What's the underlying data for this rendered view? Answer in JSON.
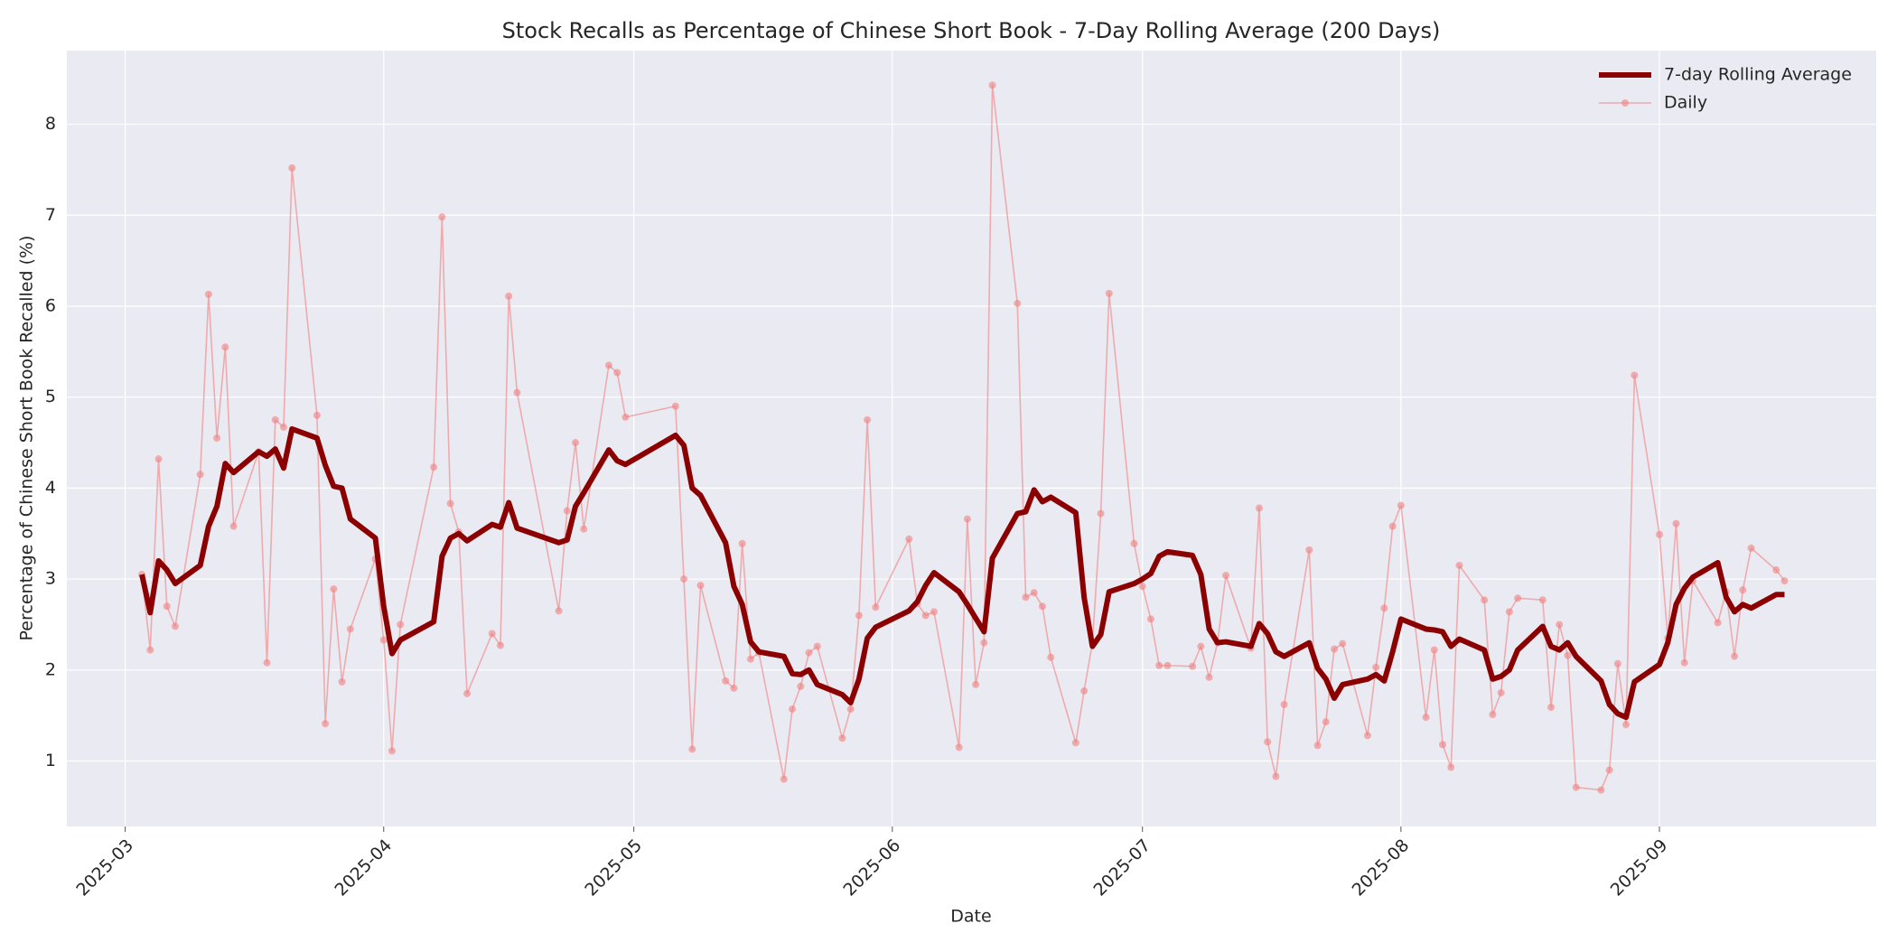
{
  "chart_data": {
    "type": "line",
    "title": "Stock Recalls as Percentage of Chinese Short Book - 7-Day Rolling Average (200 Days)",
    "x_label": "Date",
    "y_label": "Percentage of Chinese Short Book Recalled (%)",
    "x": [
      "2025-03-03",
      "2025-03-04",
      "2025-03-05",
      "2025-03-06",
      "2025-03-07",
      "2025-03-10",
      "2025-03-11",
      "2025-03-12",
      "2025-03-13",
      "2025-03-14",
      "2025-03-17",
      "2025-03-18",
      "2025-03-19",
      "2025-03-20",
      "2025-03-21",
      "2025-03-24",
      "2025-03-25",
      "2025-03-26",
      "2025-03-27",
      "2025-03-28",
      "2025-03-31",
      "2025-04-01",
      "2025-04-02",
      "2025-04-03",
      "2025-04-07",
      "2025-04-08",
      "2025-04-09",
      "2025-04-10",
      "2025-04-11",
      "2025-04-14",
      "2025-04-15",
      "2025-04-16",
      "2025-04-17",
      "2025-04-22",
      "2025-04-23",
      "2025-04-24",
      "2025-04-25",
      "2025-04-28",
      "2025-04-29",
      "2025-04-30",
      "2025-05-06",
      "2025-05-07",
      "2025-05-08",
      "2025-05-09",
      "2025-05-12",
      "2025-05-13",
      "2025-05-14",
      "2025-05-15",
      "2025-05-16",
      "2025-05-19",
      "2025-05-20",
      "2025-05-21",
      "2025-05-22",
      "2025-05-23",
      "2025-05-26",
      "2025-05-27",
      "2025-05-28",
      "2025-05-29",
      "2025-05-30",
      "2025-06-03",
      "2025-06-04",
      "2025-06-05",
      "2025-06-06",
      "2025-06-09",
      "2025-06-10",
      "2025-06-11",
      "2025-06-12",
      "2025-06-13",
      "2025-06-16",
      "2025-06-17",
      "2025-06-18",
      "2025-06-19",
      "2025-06-20",
      "2025-06-23",
      "2025-06-24",
      "2025-06-25",
      "2025-06-26",
      "2025-06-27",
      "2025-06-30",
      "2025-07-01",
      "2025-07-02",
      "2025-07-03",
      "2025-07-04",
      "2025-07-07",
      "2025-07-08",
      "2025-07-09",
      "2025-07-10",
      "2025-07-11",
      "2025-07-14",
      "2025-07-15",
      "2025-07-16",
      "2025-07-17",
      "2025-07-18",
      "2025-07-21",
      "2025-07-22",
      "2025-07-23",
      "2025-07-24",
      "2025-07-25",
      "2025-07-28",
      "2025-07-29",
      "2025-07-30",
      "2025-07-31",
      "2025-08-01",
      "2025-08-04",
      "2025-08-05",
      "2025-08-06",
      "2025-08-07",
      "2025-08-08",
      "2025-08-11",
      "2025-08-12",
      "2025-08-13",
      "2025-08-14",
      "2025-08-15",
      "2025-08-18",
      "2025-08-19",
      "2025-08-20",
      "2025-08-21",
      "2025-08-22",
      "2025-08-25",
      "2025-08-26",
      "2025-08-27",
      "2025-08-28",
      "2025-08-29",
      "2025-09-01",
      "2025-09-02",
      "2025-09-03",
      "2025-09-04",
      "2025-09-05",
      "2025-09-08",
      "2025-09-09",
      "2025-09-10",
      "2025-09-11",
      "2025-09-12",
      "2025-09-15",
      "2025-09-16"
    ],
    "series": [
      {
        "name": "7-day Rolling Average",
        "color": "#8b0000",
        "marker": false,
        "values": [
          3.05,
          2.63,
          3.2,
          3.1,
          2.95,
          3.15,
          3.58,
          3.8,
          4.27,
          4.17,
          4.4,
          4.35,
          4.43,
          4.22,
          4.65,
          4.55,
          4.25,
          4.02,
          4.0,
          3.66,
          3.45,
          2.7,
          2.18,
          2.33,
          2.53,
          3.25,
          3.45,
          3.5,
          3.42,
          3.6,
          3.57,
          3.84,
          3.56,
          3.4,
          3.43,
          3.8,
          3.95,
          4.42,
          4.3,
          4.26,
          4.58,
          4.47,
          4.0,
          3.92,
          3.4,
          2.92,
          2.72,
          2.31,
          2.2,
          2.15,
          1.96,
          1.95,
          2.0,
          1.84,
          1.73,
          1.64,
          1.9,
          2.35,
          2.47,
          2.65,
          2.75,
          2.93,
          3.07,
          2.86,
          2.72,
          2.57,
          2.42,
          3.23,
          3.72,
          3.74,
          3.98,
          3.85,
          3.9,
          3.73,
          2.8,
          2.26,
          2.39,
          2.86,
          2.95,
          3.0,
          3.06,
          3.25,
          3.3,
          3.26,
          3.05,
          2.45,
          2.3,
          2.31,
          2.26,
          2.51,
          2.4,
          2.2,
          2.15,
          2.3,
          2.02,
          1.9,
          1.69,
          1.84,
          1.9,
          1.95,
          1.88,
          2.2,
          2.56,
          2.45,
          2.44,
          2.42,
          2.26,
          2.34,
          2.22,
          1.9,
          1.93,
          2.0,
          2.22,
          2.48,
          2.26,
          2.22,
          2.3,
          2.15,
          1.88,
          1.62,
          1.52,
          1.48,
          1.87,
          2.06,
          2.3,
          2.72,
          2.9,
          3.02,
          3.18,
          2.8,
          2.64,
          2.72,
          2.68,
          2.83,
          2.83
        ]
      },
      {
        "name": "Daily",
        "color": "#f08080",
        "marker": true,
        "values": [
          3.05,
          2.22,
          4.32,
          2.7,
          2.48,
          4.15,
          6.13,
          4.55,
          5.55,
          3.58,
          4.4,
          2.08,
          4.75,
          4.67,
          7.52,
          4.8,
          1.41,
          2.89,
          1.87,
          2.45,
          3.22,
          2.33,
          1.11,
          2.5,
          4.23,
          6.98,
          3.83,
          3.52,
          1.74,
          2.4,
          2.27,
          6.11,
          5.05,
          2.65,
          3.75,
          4.5,
          3.55,
          5.35,
          5.27,
          4.78,
          4.9,
          3.0,
          1.13,
          2.93,
          1.88,
          1.8,
          3.39,
          2.12,
          2.19,
          0.8,
          1.57,
          1.82,
          2.19,
          2.26,
          1.25,
          1.57,
          2.6,
          4.75,
          2.69,
          3.44,
          2.73,
          2.6,
          2.64,
          1.15,
          3.66,
          1.84,
          2.3,
          8.43,
          6.03,
          2.8,
          2.85,
          2.7,
          2.14,
          1.2,
          1.77,
          2.3,
          3.72,
          6.14,
          3.39,
          2.92,
          2.56,
          2.05,
          2.05,
          2.04,
          2.26,
          1.92,
          2.3,
          3.04,
          2.24,
          3.78,
          1.21,
          0.83,
          1.62,
          3.32,
          1.17,
          1.43,
          2.23,
          2.29,
          1.28,
          2.03,
          2.68,
          3.58,
          3.81,
          1.48,
          2.22,
          1.18,
          0.93,
          3.15,
          2.77,
          1.51,
          1.75,
          2.64,
          2.79,
          2.77,
          1.59,
          2.5,
          2.16,
          0.71,
          0.68,
          0.9,
          2.07,
          1.4,
          5.24,
          3.49,
          2.35,
          3.61,
          2.08,
          2.98,
          2.52,
          2.86,
          2.15,
          2.88,
          3.34,
          3.1,
          2.98
        ]
      }
    ],
    "xlim": [
      "2025-02-22",
      "2025-09-27"
    ],
    "xticks": [
      "2025-03",
      "2025-04",
      "2025-05",
      "2025-06",
      "2025-07",
      "2025-08",
      "2025-09"
    ],
    "ylim": [
      0.28,
      8.81
    ],
    "yticks": [
      1,
      2,
      3,
      4,
      5,
      6,
      7,
      8
    ],
    "grid": true,
    "legend": "upper right"
  }
}
